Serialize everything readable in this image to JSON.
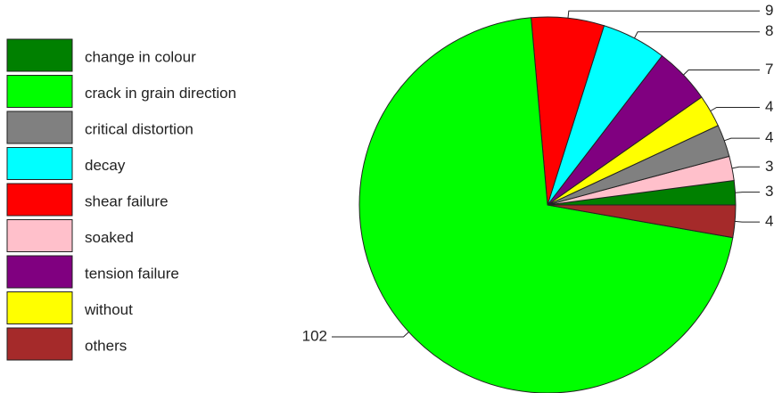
{
  "chart_data": {
    "type": "pie",
    "categories": [
      "change in colour",
      "soaked",
      "critical distortion",
      "without",
      "tension failure",
      "decay",
      "shear failure",
      "crack in grain direction",
      "others"
    ],
    "values": [
      3,
      3,
      4,
      4,
      7,
      8,
      9,
      102,
      4
    ],
    "colors": [
      "#008000",
      "#ffc0cb",
      "#808080",
      "#ffff00",
      "#800080",
      "#00ffff",
      "#ff0000",
      "#00ff00",
      "#a52a2a"
    ],
    "legend": "left"
  }
}
